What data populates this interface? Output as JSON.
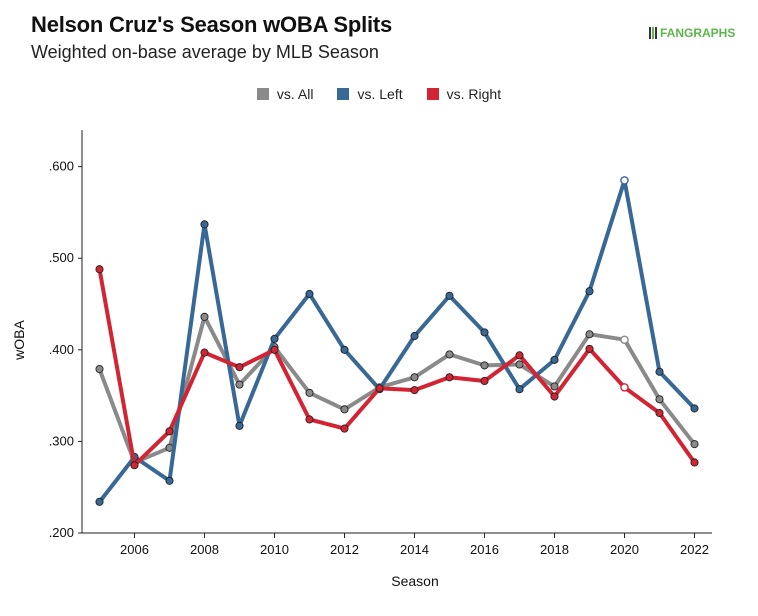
{
  "header": {
    "title": "Nelson Cruz's Season wOBA Splits",
    "subtitle": "Weighted on-base average by MLB Season",
    "logo_text": "FANGRAPHS"
  },
  "chart_data": {
    "type": "line",
    "title": "Nelson Cruz's Season wOBA Splits",
    "subtitle": "Weighted on-base average by MLB Season",
    "xlabel": "Season",
    "ylabel": "wOBA",
    "x": [
      2005,
      2006,
      2007,
      2008,
      2009,
      2010,
      2011,
      2012,
      2013,
      2014,
      2015,
      2016,
      2017,
      2018,
      2019,
      2020,
      2021,
      2022
    ],
    "xticks": [
      2006,
      2008,
      2010,
      2012,
      2014,
      2016,
      2018,
      2020,
      2022
    ],
    "xtick_labels": [
      "2006",
      "2008",
      "2010",
      "2012",
      "2014",
      "2016",
      "2018",
      "2020",
      "2022"
    ],
    "xlim": [
      2004.5,
      2022.5
    ],
    "ylim": [
      0.2,
      0.64
    ],
    "yticks": [
      0.2,
      0.3,
      0.4,
      0.5,
      0.6
    ],
    "ytick_labels": [
      ".200",
      ".300",
      ".400",
      ".500",
      ".600"
    ],
    "grid": false,
    "legend_position": "top-center",
    "hollow_marker_x": 2020,
    "series": [
      {
        "name": "vs. All",
        "color": "#8a8a8a",
        "values": [
          0.379,
          0.277,
          0.293,
          0.436,
          0.362,
          0.403,
          0.353,
          0.335,
          0.359,
          0.37,
          0.395,
          0.383,
          0.384,
          0.36,
          0.417,
          0.411,
          0.346,
          0.297
        ]
      },
      {
        "name": "vs. Left",
        "color": "#376896",
        "values": [
          0.234,
          0.283,
          0.257,
          0.537,
          0.317,
          0.412,
          0.461,
          0.4,
          0.357,
          0.415,
          0.459,
          0.419,
          0.357,
          0.389,
          0.464,
          0.585,
          0.376,
          0.336
        ]
      },
      {
        "name": "vs. Right",
        "color": "#d22433",
        "values": [
          0.488,
          0.274,
          0.311,
          0.397,
          0.381,
          0.4,
          0.324,
          0.314,
          0.358,
          0.356,
          0.37,
          0.366,
          0.394,
          0.349,
          0.401,
          0.359,
          0.331,
          0.277
        ]
      }
    ]
  }
}
